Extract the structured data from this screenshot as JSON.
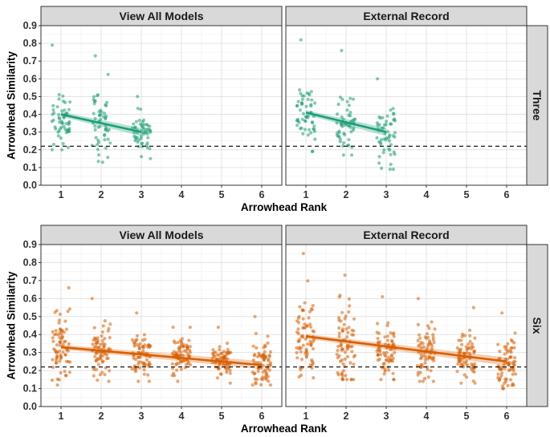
{
  "chart_data": {
    "type": "scatter",
    "xlabel": "Arrowhead Rank",
    "ylabel": "Arrowhead Similarity",
    "x_ticks": [
      1,
      2,
      3,
      4,
      5,
      6
    ],
    "xlim": [
      0.5,
      6.5
    ],
    "y_ticks": [
      0.0,
      0.1,
      0.2,
      0.3,
      0.4,
      0.5,
      0.6,
      0.7,
      0.8,
      0.9
    ],
    "ylim": [
      0.0,
      0.9
    ],
    "column_facets": [
      "View All Models",
      "External Record"
    ],
    "row_facets": [
      "Three",
      "Six"
    ],
    "reference_line": {
      "y": 0.22,
      "style": "dashed"
    },
    "grid": true,
    "colors": {
      "Three": "#1b9e77",
      "Six": "#d95f02"
    },
    "panels": [
      {
        "row": "Three",
        "column": "View All Models",
        "color": "#1b9e77",
        "trend": {
          "x": [
            1,
            3
          ],
          "y": [
            0.4,
            0.3
          ]
        },
        "summary": [
          {
            "rank": 1,
            "mean": 0.38,
            "min": 0.2,
            "max": 0.79
          },
          {
            "rank": 2,
            "mean": 0.35,
            "min": 0.13,
            "max": 0.73
          },
          {
            "rank": 3,
            "mean": 0.3,
            "min": 0.15,
            "max": 0.5
          }
        ]
      },
      {
        "row": "Three",
        "column": "External Record",
        "color": "#1b9e77",
        "trend": {
          "x": [
            1,
            3
          ],
          "y": [
            0.41,
            0.3
          ]
        },
        "summary": [
          {
            "rank": 1,
            "mean": 0.4,
            "min": 0.19,
            "max": 0.82
          },
          {
            "rank": 2,
            "mean": 0.36,
            "min": 0.17,
            "max": 0.76
          },
          {
            "rank": 3,
            "mean": 0.29,
            "min": 0.09,
            "max": 0.6
          }
        ]
      },
      {
        "row": "Six",
        "column": "View All Models",
        "color": "#d95f02",
        "trend": {
          "x": [
            1,
            6
          ],
          "y": [
            0.33,
            0.23
          ]
        },
        "summary": [
          {
            "rank": 1,
            "mean": 0.33,
            "min": 0.12,
            "max": 0.66
          },
          {
            "rank": 2,
            "mean": 0.31,
            "min": 0.14,
            "max": 0.6
          },
          {
            "rank": 3,
            "mean": 0.29,
            "min": 0.14,
            "max": 0.52
          },
          {
            "rank": 4,
            "mean": 0.28,
            "min": 0.14,
            "max": 0.44
          },
          {
            "rank": 5,
            "mean": 0.26,
            "min": 0.13,
            "max": 0.44
          },
          {
            "rank": 6,
            "mean": 0.23,
            "min": 0.12,
            "max": 0.5
          }
        ]
      },
      {
        "row": "Six",
        "column": "External Record",
        "color": "#d95f02",
        "trend": {
          "x": [
            1,
            6
          ],
          "y": [
            0.39,
            0.25
          ]
        },
        "summary": [
          {
            "rank": 1,
            "mean": 0.38,
            "min": 0.16,
            "max": 0.85
          },
          {
            "rank": 2,
            "mean": 0.34,
            "min": 0.15,
            "max": 0.73
          },
          {
            "rank": 3,
            "mean": 0.31,
            "min": 0.15,
            "max": 0.61
          },
          {
            "rank": 4,
            "mean": 0.3,
            "min": 0.14,
            "max": 0.6
          },
          {
            "rank": 5,
            "mean": 0.28,
            "min": 0.13,
            "max": 0.55
          },
          {
            "rank": 6,
            "mean": 0.25,
            "min": 0.1,
            "max": 0.52
          }
        ]
      }
    ]
  }
}
